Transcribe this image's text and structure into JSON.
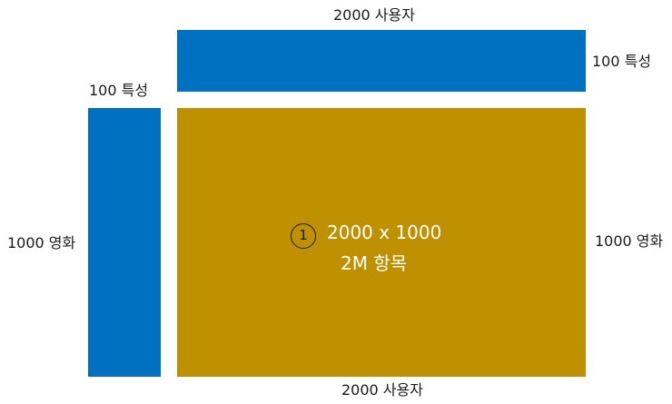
{
  "colors": {
    "user_block": "#0070c0",
    "feature_block": "#0070c0",
    "matrix_block": "#bf9000"
  },
  "labels": {
    "top_users": "2000 사용자",
    "top_features": "100 특성",
    "left_features": "100 특성",
    "left_movies": "1000 영화",
    "right_movies": "1000 영화",
    "bottom_users": "2000 사용자"
  },
  "matrix": {
    "marker": "1",
    "dimensions": "2000 x 1000",
    "items": "2M 항목"
  }
}
